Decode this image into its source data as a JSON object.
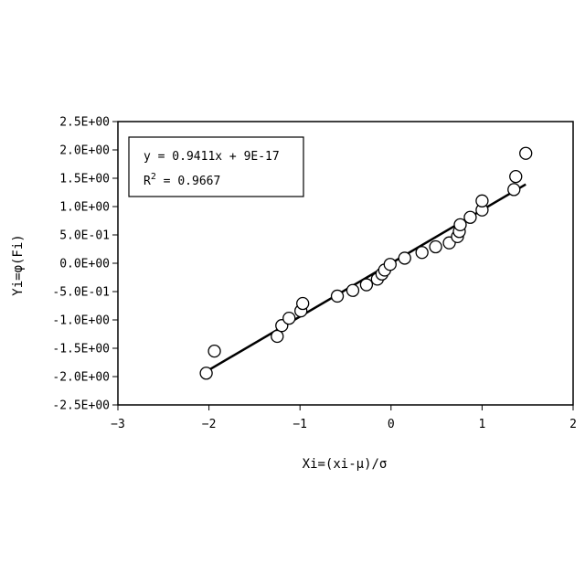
{
  "chart_data": {
    "type": "scatter",
    "title": "",
    "xlabel": "Xi=(xi-μ)/σ",
    "ylabel": "Yi=φ(Fi)",
    "xlim": [
      -3,
      2
    ],
    "ylim": [
      -2.5,
      2.5
    ],
    "x_ticks": [
      -3,
      -2,
      -1,
      0,
      1,
      2
    ],
    "x_tick_labels": [
      "−3",
      "−2",
      "−1",
      "0",
      "1",
      "2"
    ],
    "y_ticks": [
      2.5,
      2.0,
      1.5,
      1.0,
      0.5,
      0.0,
      -0.5,
      -1.0,
      -1.5,
      -2.0,
      -2.5
    ],
    "y_tick_labels": [
      "2.5E+00",
      "2.0E+00",
      "1.5E+00",
      "1.0E+00",
      "5.0E-01",
      "0.0E+00",
      "-5.0E-01",
      "-1.0E+00",
      "-1.5E+00",
      "-2.0E+00",
      "-2.5E+00"
    ],
    "grid": false,
    "series": [
      {
        "points": [
          [
            -2.03,
            -1.94
          ],
          [
            -1.94,
            -1.55
          ],
          [
            -1.25,
            -1.29
          ],
          [
            -1.2,
            -1.1
          ],
          [
            -1.12,
            -0.97
          ],
          [
            -0.99,
            -0.84
          ],
          [
            -0.97,
            -0.71
          ],
          [
            -0.59,
            -0.58
          ],
          [
            -0.42,
            -0.48
          ],
          [
            -0.27,
            -0.38
          ],
          [
            -0.15,
            -0.28
          ],
          [
            -0.1,
            -0.19
          ],
          [
            -0.07,
            -0.12
          ],
          [
            -0.01,
            -0.02
          ],
          [
            0.15,
            0.09
          ],
          [
            0.34,
            0.19
          ],
          [
            0.49,
            0.29
          ],
          [
            0.64,
            0.36
          ],
          [
            0.73,
            0.47
          ],
          [
            0.75,
            0.56
          ],
          [
            0.76,
            0.68
          ],
          [
            0.87,
            0.81
          ],
          [
            1.0,
            0.94
          ],
          [
            1.0,
            1.1
          ],
          [
            1.35,
            1.3
          ],
          [
            1.37,
            1.53
          ],
          [
            1.48,
            1.94
          ]
        ]
      }
    ],
    "trendline": {
      "slope": 0.9411,
      "intercept": 0,
      "x_range": [
        -2.03,
        1.48
      ]
    },
    "annotation": {
      "equation": "y = 0.9411x + 9E-17",
      "r2_base": "R",
      "r2_sup": "2",
      "r2_rest": " = 0.9667"
    }
  }
}
